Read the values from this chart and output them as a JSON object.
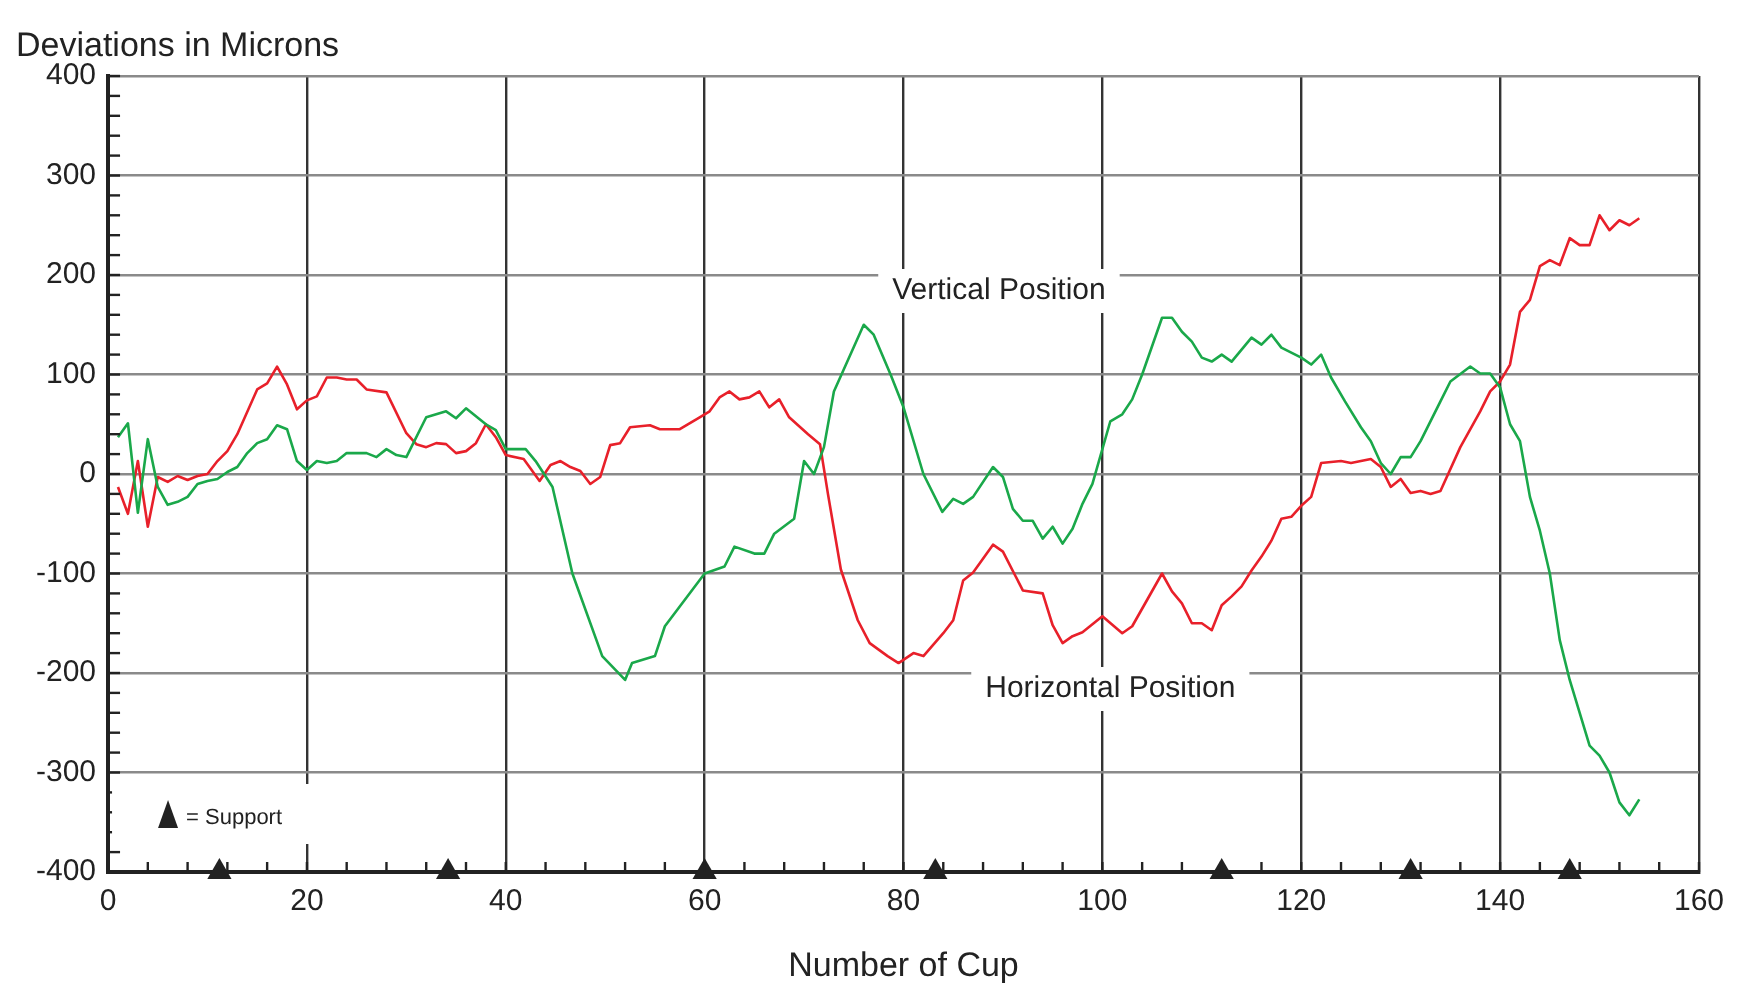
{
  "chart_data": {
    "type": "line",
    "ylabel": "Deviations in Microns",
    "xlabel": "Number of Cup",
    "xlim": [
      0,
      160
    ],
    "ylim": [
      -400,
      400
    ],
    "xticks": [
      0,
      {
        "value": 4,
        "label": null
      },
      {
        "value": 8,
        "label": null
      },
      {
        "value": 12,
        "label": null
      },
      {
        "value": 16,
        "label": null
      },
      20,
      {
        "value": 24,
        "label": null
      },
      {
        "value": 28,
        "label": null
      },
      {
        "value": 32,
        "label": null
      },
      {
        "value": 36,
        "label": null
      },
      40,
      {
        "value": 44,
        "label": null
      },
      {
        "value": 48,
        "label": null
      },
      {
        "value": 52,
        "label": null
      },
      {
        "value": 56,
        "label": null
      },
      60,
      {
        "value": 64,
        "label": null
      },
      {
        "value": 68,
        "label": null
      },
      {
        "value": 72,
        "label": null
      },
      {
        "value": 76,
        "label": null
      },
      80,
      {
        "value": 84,
        "label": null
      },
      {
        "value": 88,
        "label": null
      },
      {
        "value": 92,
        "label": null
      },
      {
        "value": 96,
        "label": null
      },
      100,
      {
        "value": 104,
        "label": null
      },
      {
        "value": 108,
        "label": null
      },
      {
        "value": 112,
        "label": null
      },
      {
        "value": 116,
        "label": null
      },
      120,
      {
        "value": 124,
        "label": null
      },
      {
        "value": 128,
        "label": null
      },
      {
        "value": 132,
        "label": null
      },
      {
        "value": 136,
        "label": null
      },
      140,
      {
        "value": 144,
        "label": null
      },
      {
        "value": 148,
        "label": null
      },
      {
        "value": 152,
        "label": null
      },
      {
        "value": 156,
        "label": null
      },
      160
    ],
    "yticks": [
      -400,
      {
        "value": -380,
        "label": null
      },
      {
        "value": -360,
        "label": null
      },
      {
        "value": -340,
        "label": null
      },
      {
        "value": -320,
        "label": null
      },
      -300,
      {
        "value": -280,
        "label": null
      },
      {
        "value": -260,
        "label": null
      },
      {
        "value": -240,
        "label": null
      },
      {
        "value": -220,
        "label": null
      },
      -200,
      {
        "value": -180,
        "label": null
      },
      {
        "value": -160,
        "label": null
      },
      {
        "value": -140,
        "label": null
      },
      {
        "value": -120,
        "label": null
      },
      -100,
      {
        "value": -80,
        "label": null
      },
      {
        "value": -60,
        "label": null
      },
      {
        "value": -40,
        "label": null
      },
      {
        "value": -20,
        "label": null
      },
      0,
      {
        "value": 20,
        "label": null
      },
      {
        "value": 40,
        "label": null
      },
      {
        "value": 60,
        "label": null
      },
      {
        "value": 80,
        "label": null
      },
      100,
      {
        "value": 120,
        "label": null
      },
      {
        "value": 140,
        "label": null
      },
      {
        "value": 160,
        "label": null
      },
      {
        "value": 180,
        "label": null
      },
      200,
      {
        "value": 220,
        "label": null
      },
      {
        "value": 240,
        "label": null
      },
      {
        "value": 260,
        "label": null
      },
      {
        "value": 280,
        "label": null
      },
      300,
      {
        "value": 320,
        "label": null
      },
      {
        "value": 340,
        "label": null
      },
      {
        "value": 360,
        "label": null
      },
      {
        "value": 380,
        "label": null
      },
      400
    ],
    "grid": true,
    "legend": "bottom left",
    "marker": "none",
    "line_style": "solid",
    "series": [
      {
        "name": "Vertical Position",
        "color": "#1aa84a",
        "x": [
          1,
          2,
          3,
          4,
          5,
          6,
          7,
          8,
          9,
          10,
          11,
          12,
          13,
          14,
          15,
          16,
          17,
          18,
          19,
          20,
          21,
          22,
          23,
          24,
          26,
          27,
          28,
          29,
          30,
          32,
          34,
          35,
          36,
          38,
          39,
          40,
          42,
          43,
          44.7,
          46.7,
          49.7,
          52,
          52.7,
          55,
          56,
          60,
          62,
          63,
          65,
          66,
          67,
          69,
          70,
          71,
          72,
          73,
          76,
          77,
          78.7,
          80,
          82,
          83.9,
          85,
          86,
          87,
          89,
          90,
          91,
          92,
          93,
          94,
          95,
          96,
          97,
          98,
          99,
          100.8,
          102,
          103,
          104,
          106,
          107,
          108,
          109,
          110,
          111,
          112,
          113,
          115,
          116,
          117,
          118,
          120,
          121,
          122,
          123,
          124.4,
          126,
          127,
          128,
          129,
          130,
          131,
          132,
          134,
          135,
          137,
          138,
          139,
          140,
          141,
          142,
          143,
          144,
          145,
          146,
          147,
          149,
          150,
          151,
          152,
          153,
          154
        ],
        "values": [
          37,
          51,
          -39,
          35,
          -13,
          -31,
          -28,
          -23,
          -10,
          -7,
          -5,
          2,
          7,
          21,
          31,
          35,
          49,
          45,
          13,
          4,
          13,
          11,
          13,
          21,
          21,
          17,
          25,
          19,
          17,
          57,
          63,
          56,
          66,
          50,
          44,
          25,
          25,
          13,
          -13,
          -100,
          -183,
          -207,
          -190,
          -183,
          -153,
          -100,
          -93,
          -73,
          -80,
          -80,
          -60,
          -45,
          13,
          0,
          27,
          83,
          150,
          140,
          100,
          67,
          0,
          -38,
          -25,
          -30,
          -23,
          7,
          -3,
          -35,
          -47,
          -47,
          -65,
          -53,
          -70,
          -55,
          -30,
          -10,
          53,
          60,
          75,
          100,
          157,
          157,
          143,
          133,
          117,
          113,
          120,
          113,
          137,
          130,
          140,
          127,
          117,
          110,
          120,
          97,
          73,
          47,
          33,
          11,
          0,
          17,
          17,
          33,
          73,
          93,
          108,
          101,
          101,
          87,
          50,
          33,
          -23,
          -57,
          -100,
          -167,
          -207,
          -273,
          -283,
          -300,
          -330,
          -343,
          -327
        ]
      },
      {
        "name": "Horizontal Position",
        "color": "#e8202a",
        "x": [
          1,
          2,
          3,
          4,
          5,
          6,
          7,
          8,
          9,
          10,
          11,
          12,
          13,
          15,
          16,
          17,
          18,
          19,
          20,
          21,
          22,
          23,
          24,
          25,
          26,
          28,
          30,
          31,
          32,
          33,
          34,
          35,
          36,
          37,
          38,
          39,
          40,
          41.8,
          43.4,
          44.5,
          45.5,
          46.5,
          47.5,
          48.5,
          49.5,
          50.5,
          51.5,
          52.5,
          54.5,
          55.5,
          57.5,
          59.5,
          60.5,
          61.5,
          62.5,
          63.5,
          64.5,
          65.5,
          66.5,
          67.5,
          68.5,
          70.4,
          71.6,
          72.4,
          73.7,
          75.4,
          76.6,
          78.4,
          79.5,
          81,
          82,
          84,
          85,
          86,
          87,
          89,
          90,
          92,
          94,
          95,
          96,
          97,
          98,
          100,
          102,
          103,
          106,
          107,
          108,
          109,
          110,
          111,
          112,
          113,
          114,
          115,
          116,
          117,
          118,
          119,
          120,
          121,
          122,
          124,
          125,
          127,
          128,
          129,
          130,
          131,
          132,
          133,
          134,
          136,
          138,
          139,
          140,
          141,
          142,
          143,
          144,
          145,
          146,
          147,
          148,
          149,
          150,
          151,
          152,
          153,
          154
        ],
        "values": [
          -13,
          -40,
          13,
          -53,
          -3,
          -8,
          -2,
          -6,
          -2,
          0,
          13,
          23,
          40,
          85,
          91,
          108,
          90,
          65,
          74,
          78,
          97,
          97,
          95,
          95,
          85,
          82,
          41,
          30,
          27,
          31,
          30,
          21,
          23,
          31,
          50,
          37,
          19,
          15,
          -7,
          9,
          13,
          7,
          3,
          -10,
          -3,
          29,
          31,
          47,
          49,
          45,
          45,
          57,
          63,
          77,
          83,
          75,
          77,
          83,
          67,
          75,
          57,
          40,
          30,
          -20,
          -96,
          -147,
          -170,
          -183,
          -190,
          -180,
          -183,
          -160,
          -147,
          -107,
          -99,
          -71,
          -78,
          -117,
          -120,
          -152,
          -170,
          -163,
          -159,
          -143,
          -160,
          -153,
          -100,
          -118,
          -130,
          -150,
          -150,
          -157,
          -132,
          -123,
          -113,
          -97,
          -83,
          -67,
          -45,
          -43,
          -32,
          -23,
          11,
          13,
          11,
          15,
          7,
          -13,
          -5,
          -19,
          -17,
          -20,
          -17,
          27,
          63,
          83,
          93,
          110,
          163,
          175,
          209,
          215,
          210,
          237,
          230,
          230,
          260,
          245,
          255,
          250,
          257
        ]
      },
      {
        "name": "= Support",
        "type": "scatter",
        "marker": "triangle",
        "color": "#222222",
        "x": [
          11.2,
          34.2,
          60,
          83.2,
          112,
          131,
          147
        ],
        "values": [
          -400,
          -400,
          -400,
          -400,
          -400,
          -400,
          -400
        ]
      }
    ]
  }
}
